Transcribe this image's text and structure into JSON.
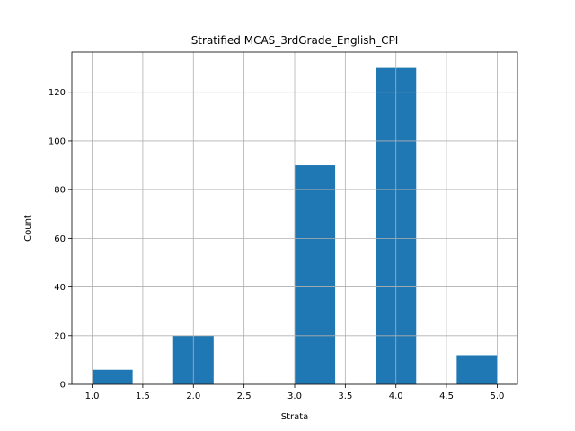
{
  "chart_data": {
    "type": "bar",
    "title": "Stratified MCAS_3rdGrade_English_CPI",
    "xlabel": "Strata",
    "ylabel": "Count",
    "xlim": [
      0.8,
      5.2
    ],
    "ylim": [
      0,
      136.5
    ],
    "xticks": [
      1.0,
      1.5,
      2.0,
      2.5,
      3.0,
      3.5,
      4.0,
      4.5,
      5.0
    ],
    "xtick_labels": [
      "1.0",
      "1.5",
      "2.0",
      "2.5",
      "3.0",
      "3.5",
      "4.0",
      "4.5",
      "5.0"
    ],
    "yticks": [
      0,
      20,
      40,
      60,
      80,
      100,
      120
    ],
    "ytick_labels": [
      "0",
      "20",
      "40",
      "60",
      "80",
      "100",
      "120"
    ],
    "grid": true,
    "bar_color": "#1f77b4",
    "bins": [
      {
        "x0": 1.0,
        "x1": 1.4,
        "count": 6
      },
      {
        "x0": 1.4,
        "x1": 1.8,
        "count": 0
      },
      {
        "x0": 1.8,
        "x1": 2.2,
        "count": 20
      },
      {
        "x0": 2.2,
        "x1": 2.6,
        "count": 0
      },
      {
        "x0": 2.6,
        "x1": 3.0,
        "count": 0
      },
      {
        "x0": 3.0,
        "x1": 3.4,
        "count": 90
      },
      {
        "x0": 3.4,
        "x1": 3.8,
        "count": 0
      },
      {
        "x0": 3.8,
        "x1": 4.2,
        "count": 130
      },
      {
        "x0": 4.2,
        "x1": 4.6,
        "count": 0
      },
      {
        "x0": 4.6,
        "x1": 5.0,
        "count": 12
      }
    ]
  }
}
